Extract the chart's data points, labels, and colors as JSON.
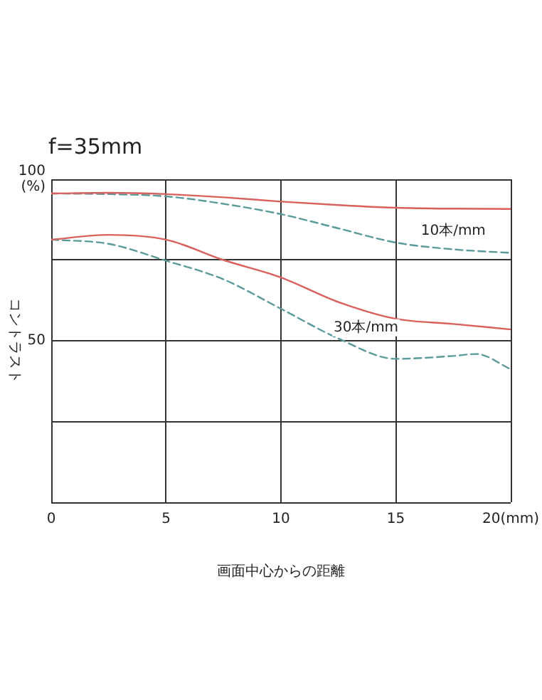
{
  "chart_data": {
    "type": "line",
    "title": "f=35mm",
    "xlabel": "画面中心からの距離",
    "ylabel": "コントラスト",
    "series": [
      {
        "color": "#d9605c",
        "line_style": "solid",
        "x": [
          0,
          2.5,
          5,
          7.5,
          10,
          12.5,
          15,
          17.5,
          20
        ],
        "values": [
          95.6,
          95.8,
          95.4,
          94.4,
          93.1,
          92,
          91.2,
          90.9,
          90.8
        ]
      },
      {
        "color": "#5a9a9a",
        "line_style": "dashed",
        "x": [
          0,
          2.5,
          5,
          7.5,
          10,
          12.5,
          15,
          17.5,
          20
        ],
        "values": [
          95.6,
          95.4,
          94.7,
          92.4,
          89.2,
          84.8,
          80.4,
          78.3,
          77.2
        ]
      },
      {
        "color": "#d9605c",
        "line_style": "solid",
        "x": [
          0,
          2.5,
          5,
          7.5,
          10,
          12.5,
          15,
          17.5,
          20
        ],
        "values": [
          81.3,
          82.8,
          81.3,
          75,
          69.6,
          62,
          56.8,
          55.2,
          53.5
        ]
      },
      {
        "color": "#5a9a9a",
        "line_style": "dashed",
        "x": [
          0,
          2.5,
          5,
          7.5,
          10,
          12.5,
          15,
          17.5,
          18.5,
          20
        ],
        "values": [
          81.3,
          80,
          74.8,
          69,
          59.9,
          50.7,
          44.4,
          45.3,
          45.9,
          41.2
        ]
      }
    ],
    "xlim": [
      0,
      20
    ],
    "xticks": [
      0,
      5,
      10,
      15,
      {
        "value": 20,
        "label": "20(mm)"
      }
    ],
    "ylim": [
      0,
      100
    ],
    "yticks": [
      {
        "value": 0,
        "label": null
      },
      {
        "value": 25,
        "label": null
      },
      50,
      {
        "value": 75,
        "label": null
      },
      {
        "value": 100,
        "label": "100\n(%)"
      }
    ],
    "annotations": [
      "10本/mm",
      "30本/mm"
    ],
    "grid": true,
    "legend": false,
    "marker": "none"
  }
}
